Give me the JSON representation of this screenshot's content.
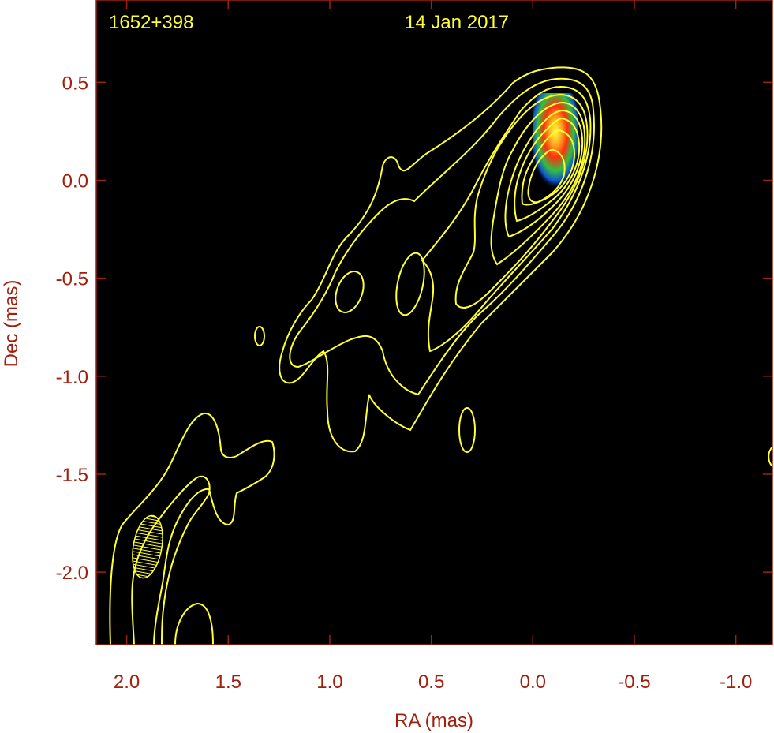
{
  "chart_data": {
    "type": "contour",
    "source_label": "1652+398",
    "epoch_label": "14 Jan 2017",
    "xlabel": "RA (mas)",
    "ylabel": "Dec (mas)",
    "xlim": [
      2.15,
      -1.18
    ],
    "ylim": [
      -2.37,
      0.92
    ],
    "x_ticks": [
      {
        "value": 2.0,
        "label": "2.0"
      },
      {
        "value": 1.5,
        "label": "1.5"
      },
      {
        "value": 1.0,
        "label": "1.0"
      },
      {
        "value": 0.5,
        "label": "0.5"
      },
      {
        "value": 0.0,
        "label": "0.0"
      },
      {
        "value": -0.5,
        "label": "-0.5"
      },
      {
        "value": -1.0,
        "label": "-1.0"
      }
    ],
    "y_ticks": [
      {
        "value": 0.5,
        "label": "0.5"
      },
      {
        "value": 0.0,
        "label": "0.0"
      },
      {
        "value": -0.5,
        "label": "-0.5"
      },
      {
        "value": -1.0,
        "label": "-1.0"
      },
      {
        "value": -1.5,
        "label": "-1.5"
      },
      {
        "value": -2.0,
        "label": "-2.0"
      }
    ],
    "core_peak": {
      "x": -0.07,
      "y": 0.25
    },
    "beam": {
      "x": 1.93,
      "y": -1.87,
      "major_mas": 0.33,
      "minor_mas": 0.15,
      "pa_deg": 10
    },
    "colors": {
      "background": "#000000",
      "contour": "#ffff33",
      "axis_text": "#a0200e",
      "label_text": "#ffff33"
    }
  }
}
